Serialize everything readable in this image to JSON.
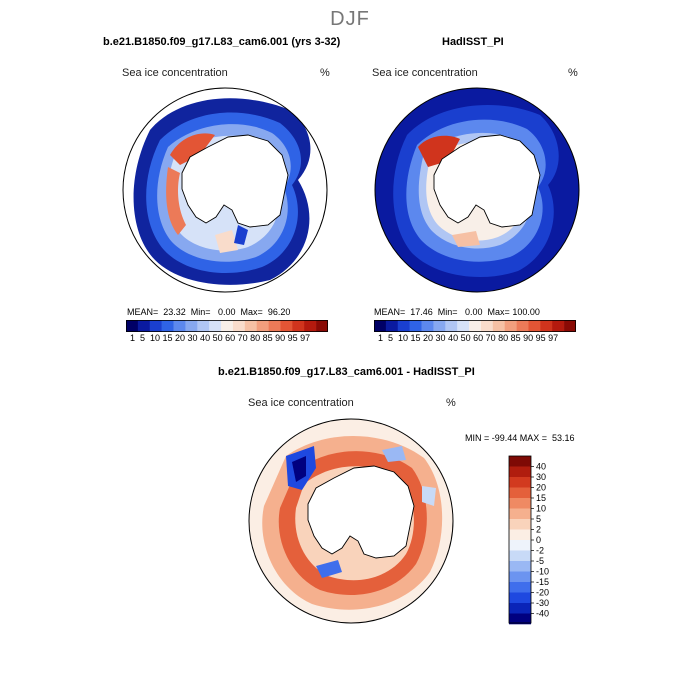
{
  "page": {
    "title": "DJF"
  },
  "panels": [
    {
      "title": "b.e21.B1850.f09_g17.L83_cam6.001 (yrs 3-32)",
      "variable": "Sea ice concentration",
      "units": "%",
      "stats": "MEAN=  23.32  Min=   0.00  Max=  96.20"
    },
    {
      "title": "HadISST_PI",
      "variable": "Sea ice concentration",
      "units": "%",
      "stats": "MEAN=  17.46  Min=   0.00  Max= 100.00"
    },
    {
      "title": "b.e21.B1850.f09_g17.L83_cam6.001 - HadISST_PI",
      "variable": "Sea ice concentration",
      "units": "%",
      "stats": "MIN = -99.44 MAX =  53.16"
    }
  ],
  "colorbars": {
    "absolute": {
      "colors": [
        "#000066",
        "#0a1aa0",
        "#1a3fcf",
        "#2f63e6",
        "#5c88ee",
        "#87a8f0",
        "#b0c6f4",
        "#d6e2f8",
        "#f8efe8",
        "#f9dccb",
        "#f6c0a4",
        "#f29e7d",
        "#ec7a58",
        "#e35535",
        "#d0341d",
        "#b41a0e",
        "#8a0a05"
      ],
      "tick_labels": "1  5  10 15 20 30 40 50 60 70 80 85 90 95 97"
    },
    "difference": {
      "colors": [
        "#000080",
        "#0a24b8",
        "#1e48e0",
        "#3f6eec",
        "#6c94f0",
        "#9ab8f4",
        "#c8daf7",
        "#eef3fb",
        "#fbeee4",
        "#f9d3bb",
        "#f5b08e",
        "#ef8a63",
        "#e4603b",
        "#d23a1f",
        "#b01d0e",
        "#7e0a05"
      ],
      "tick_labels": [
        "40",
        "30",
        "20",
        "15",
        "10",
        "5",
        "2",
        "0",
        "-2",
        "-5",
        "-10",
        "-15",
        "-20",
        "-30",
        "-40"
      ]
    }
  }
}
